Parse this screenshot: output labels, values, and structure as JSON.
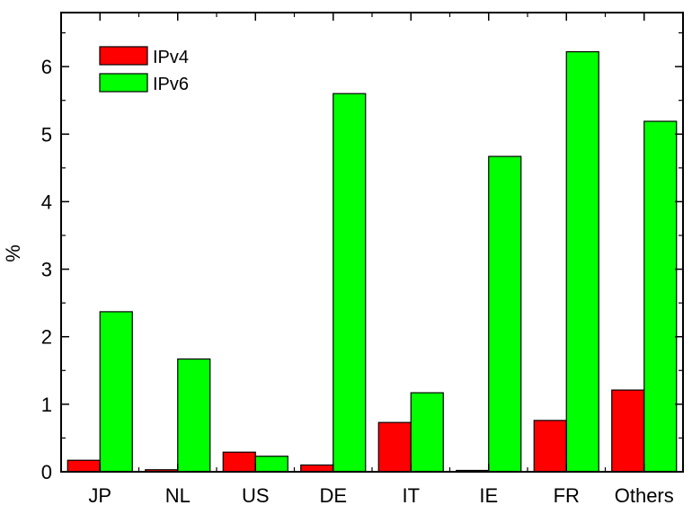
{
  "chart_data": {
    "type": "bar",
    "title": "",
    "xlabel": "",
    "ylabel": "%",
    "ylim": [
      0,
      6.8
    ],
    "yticks": [
      0,
      1,
      2,
      3,
      4,
      5,
      6
    ],
    "grid": false,
    "legend_position": "top-left",
    "categories": [
      "JP",
      "NL",
      "US",
      "DE",
      "IT",
      "IE",
      "FR",
      "Others"
    ],
    "series": [
      {
        "name": "IPv4",
        "color": "#ff0000",
        "values": [
          0.17,
          0.03,
          0.29,
          0.1,
          0.73,
          0.02,
          0.76,
          1.21
        ]
      },
      {
        "name": "IPv6",
        "color": "#00ff00",
        "values": [
          2.37,
          1.67,
          0.23,
          5.6,
          1.17,
          4.67,
          6.22,
          5.19
        ]
      }
    ]
  }
}
